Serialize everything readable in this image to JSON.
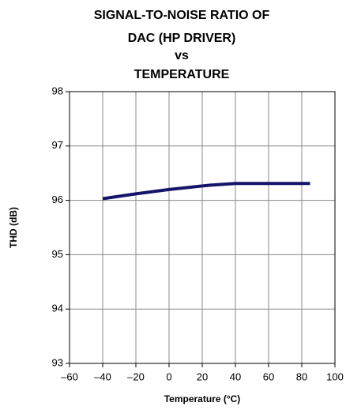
{
  "chart_data": {
    "type": "line",
    "title": [
      "SIGNAL-TO-NOISE RATIO OF",
      "DAC (HP DRIVER)",
      "vs",
      "TEMPERATURE"
    ],
    "x_label": "Temperature (°C)",
    "y_label": "THD (dB)",
    "x": [
      -40,
      -20,
      0,
      25,
      40,
      60,
      85
    ],
    "series": [
      {
        "color": "#14146b",
        "values": [
          96.03,
          96.12,
          96.2,
          96.28,
          96.31,
          96.31,
          96.31
        ]
      }
    ],
    "xlim": [
      -60,
      100
    ],
    "xticks": [
      {
        "value": -60,
        "label": "–60"
      },
      {
        "value": -40,
        "label": "–40"
      },
      {
        "value": -20,
        "label": "–20"
      },
      0,
      20,
      40,
      60,
      80,
      100
    ],
    "ylim": [
      93,
      98
    ],
    "yticks": [
      93,
      94,
      95,
      96,
      97,
      98
    ],
    "grid": true
  }
}
